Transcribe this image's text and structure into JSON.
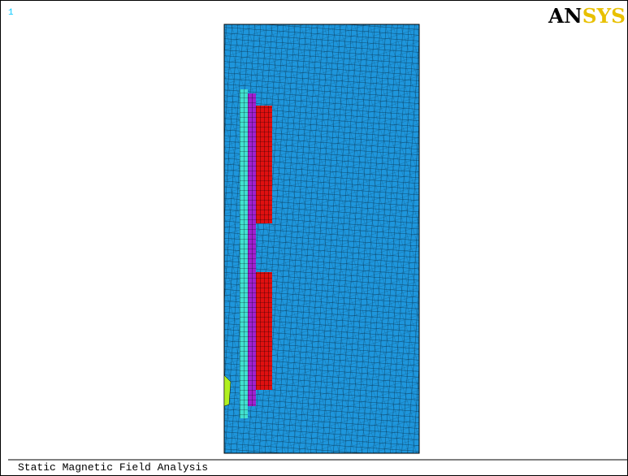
{
  "window": {
    "number": "1",
    "logo": "ANSYS",
    "footer": "Static Magnetic Field Analysis"
  }
}
